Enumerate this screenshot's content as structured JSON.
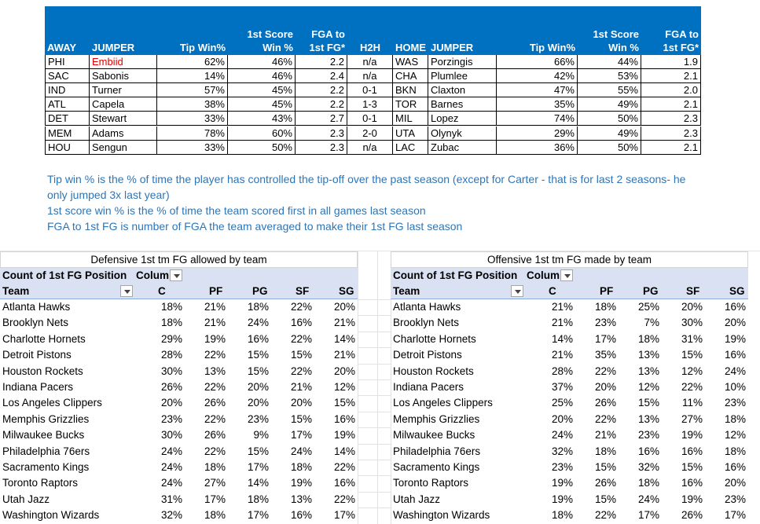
{
  "matchups": {
    "columns": [
      "AWAY",
      "JUMPER",
      "Tip Win%",
      "1st Score\nWin %",
      "FGA to\n1st FG*",
      "H2H",
      "HOME",
      "JUMPER",
      "Tip Win%",
      "1st Score\nWin %",
      "FGA to\n1st FG*"
    ],
    "rows": [
      [
        "PHI",
        "Embiid",
        "62%",
        "46%",
        "2.2",
        "n/a",
        "WAS",
        "Porzingis",
        "66%",
        "44%",
        "1.9"
      ],
      [
        "SAC",
        "Sabonis",
        "14%",
        "46%",
        "2.4",
        "n/a",
        "CHA",
        "Plumlee",
        "42%",
        "53%",
        "2.1"
      ],
      [
        "IND",
        "Turner",
        "57%",
        "45%",
        "2.2",
        "0-1",
        "BKN",
        "Claxton",
        "47%",
        "55%",
        "2.0"
      ],
      [
        "ATL",
        "Capela",
        "38%",
        "45%",
        "2.2",
        "1-3",
        "TOR",
        "Barnes",
        "35%",
        "49%",
        "2.1"
      ],
      [
        "DET",
        "Stewart",
        "33%",
        "43%",
        "2.7",
        "0-1",
        "MIL",
        "Lopez",
        "74%",
        "50%",
        "2.3"
      ],
      [
        "MEM",
        "Adams",
        "78%",
        "60%",
        "2.3",
        "2-0",
        "UTA",
        "Olynyk",
        "29%",
        "49%",
        "2.3"
      ],
      [
        "HOU",
        "Sengun",
        "33%",
        "50%",
        "2.3",
        "n/a",
        "LAC",
        "Zubac",
        "36%",
        "50%",
        "2.1"
      ]
    ]
  },
  "notes": [
    "Tip win % is the % of time the player has controlled the tip-off over the past season (except for Carter - that is for last 2 seasons- he only jumped 3x last year)",
    "1st score win % is the % of time the team scored first in all games last season",
    "FGA to 1st FG is number of FGA the team averaged to make their 1st FG last season"
  ],
  "pivots": [
    {
      "title": "Defensive 1st tm FG allowed by team",
      "filter_label": "Count of 1st FG Position",
      "column_label": "Colum",
      "row_label": "Team",
      "columns": [
        "C",
        "PF",
        "PG",
        "SF",
        "SG"
      ],
      "rows": [
        [
          "Atlanta Hawks",
          "18%",
          "21%",
          "18%",
          "22%",
          "20%"
        ],
        [
          "Brooklyn Nets",
          "18%",
          "21%",
          "24%",
          "16%",
          "21%"
        ],
        [
          "Charlotte Hornets",
          "29%",
          "19%",
          "16%",
          "22%",
          "14%"
        ],
        [
          "Detroit Pistons",
          "28%",
          "22%",
          "15%",
          "15%",
          "21%"
        ],
        [
          "Houston Rockets",
          "30%",
          "13%",
          "15%",
          "22%",
          "20%"
        ],
        [
          "Indiana Pacers",
          "26%",
          "22%",
          "20%",
          "21%",
          "12%"
        ],
        [
          "Los Angeles Clippers",
          "20%",
          "26%",
          "20%",
          "20%",
          "15%"
        ],
        [
          "Memphis Grizzlies",
          "23%",
          "22%",
          "23%",
          "15%",
          "16%"
        ],
        [
          "Milwaukee Bucks",
          "30%",
          "26%",
          "9%",
          "17%",
          "19%"
        ],
        [
          "Philadelphia 76ers",
          "24%",
          "22%",
          "15%",
          "24%",
          "14%"
        ],
        [
          "Sacramento Kings",
          "24%",
          "18%",
          "17%",
          "18%",
          "22%"
        ],
        [
          "Toronto Raptors",
          "24%",
          "27%",
          "14%",
          "19%",
          "16%"
        ],
        [
          "Utah Jazz",
          "31%",
          "17%",
          "18%",
          "13%",
          "22%"
        ],
        [
          "Washington Wizards",
          "32%",
          "18%",
          "17%",
          "16%",
          "17%"
        ]
      ]
    },
    {
      "title": "Offensive 1st tm FG made by team",
      "filter_label": "Count of 1st FG Position",
      "column_label": "Colum",
      "row_label": "Team",
      "columns": [
        "C",
        "PF",
        "PG",
        "SF",
        "SG"
      ],
      "rows": [
        [
          "Atlanta Hawks",
          "21%",
          "18%",
          "25%",
          "20%",
          "16%"
        ],
        [
          "Brooklyn Nets",
          "21%",
          "23%",
          "7%",
          "30%",
          "20%"
        ],
        [
          "Charlotte Hornets",
          "14%",
          "17%",
          "18%",
          "31%",
          "19%"
        ],
        [
          "Detroit Pistons",
          "21%",
          "35%",
          "13%",
          "15%",
          "16%"
        ],
        [
          "Houston Rockets",
          "28%",
          "22%",
          "13%",
          "12%",
          "24%"
        ],
        [
          "Indiana Pacers",
          "37%",
          "20%",
          "12%",
          "22%",
          "10%"
        ],
        [
          "Los Angeles Clippers",
          "25%",
          "26%",
          "15%",
          "11%",
          "23%"
        ],
        [
          "Memphis Grizzlies",
          "20%",
          "22%",
          "13%",
          "27%",
          "18%"
        ],
        [
          "Milwaukee Bucks",
          "24%",
          "21%",
          "23%",
          "19%",
          "12%"
        ],
        [
          "Philadelphia 76ers",
          "32%",
          "18%",
          "16%",
          "16%",
          "18%"
        ],
        [
          "Sacramento Kings",
          "23%",
          "15%",
          "32%",
          "15%",
          "16%"
        ],
        [
          "Toronto Raptors",
          "19%",
          "26%",
          "18%",
          "16%",
          "20%"
        ],
        [
          "Utah Jazz",
          "19%",
          "15%",
          "24%",
          "19%",
          "23%"
        ],
        [
          "Washington Wizards",
          "18%",
          "22%",
          "17%",
          "26%",
          "17%"
        ]
      ]
    }
  ]
}
